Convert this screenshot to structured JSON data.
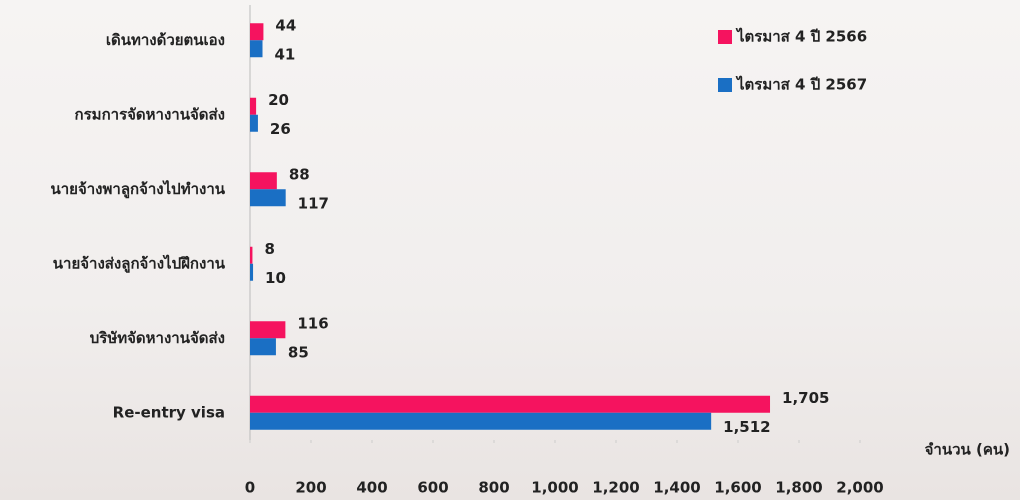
{
  "chart_data": {
    "type": "bar",
    "orientation": "horizontal",
    "x_label": "จำนวน (คน)",
    "categories": [
      "เดินทางด้วยตนเอง",
      "กรมการจัดหางานจัดส่ง",
      "นายจ้างพาลูกจ้างไปทำงาน",
      "นายจ้างส่งลูกจ้างไปฝึกงาน",
      "บริษัทจัดหางานจัดส่ง",
      "Re-entry visa"
    ],
    "series": [
      {
        "name": "ไตรมาส 4 ปี 2566",
        "color": "#f5135f",
        "values": [
          44,
          20,
          88,
          8,
          116,
          1705
        ],
        "value_labels": [
          "44",
          "20",
          "88",
          "8",
          "116",
          "1,705"
        ]
      },
      {
        "name": "ไตรมาส 4 ปี 2567",
        "color": "#1a6fc4",
        "values": [
          41,
          26,
          117,
          10,
          85,
          1512
        ],
        "value_labels": [
          "41",
          "26",
          "117",
          "10",
          "85",
          "1,512"
        ]
      }
    ],
    "xlim": [
      0,
      2000
    ],
    "xticks": [
      0,
      200,
      400,
      600,
      800,
      {
        "value": 1000,
        "label": "1,000"
      },
      {
        "value": 1200,
        "label": "1,200"
      },
      {
        "value": 1400,
        "label": "1,400"
      },
      {
        "value": 1600,
        "label": "1,600"
      },
      {
        "value": 1800,
        "label": "1,800"
      },
      {
        "value": 2000,
        "label": "2,000"
      }
    ],
    "legend": "top-right",
    "grid": false
  }
}
